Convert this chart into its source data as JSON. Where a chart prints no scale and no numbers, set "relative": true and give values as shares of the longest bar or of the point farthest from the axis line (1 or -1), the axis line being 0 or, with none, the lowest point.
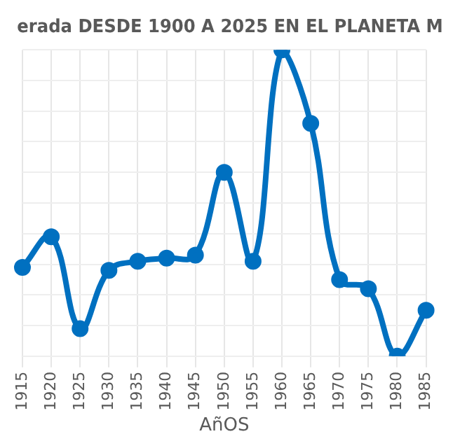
{
  "chart_data": {
    "type": "line",
    "title": "erada DESDE 1900 A 2025 EN EL PLANETA M",
    "xlabel": "AñOS",
    "relative": true,
    "categories": [
      "1915",
      "1920",
      "1925",
      "1930",
      "1935",
      "1940",
      "1945",
      "1950",
      "1955",
      "1960",
      "1965",
      "1970",
      "1975",
      "1980",
      "1985"
    ],
    "series": [
      {
        "color": "#0070c0",
        "values": [
          0.29,
          0.39,
          0.09,
          0.28,
          0.31,
          0.32,
          0.33,
          0.6,
          0.31,
          1,
          0.76,
          0.25,
          0.22,
          0,
          0.15
        ]
      }
    ],
    "grid": true,
    "marker": "circle",
    "line_style": "solid",
    "legend": false
  }
}
